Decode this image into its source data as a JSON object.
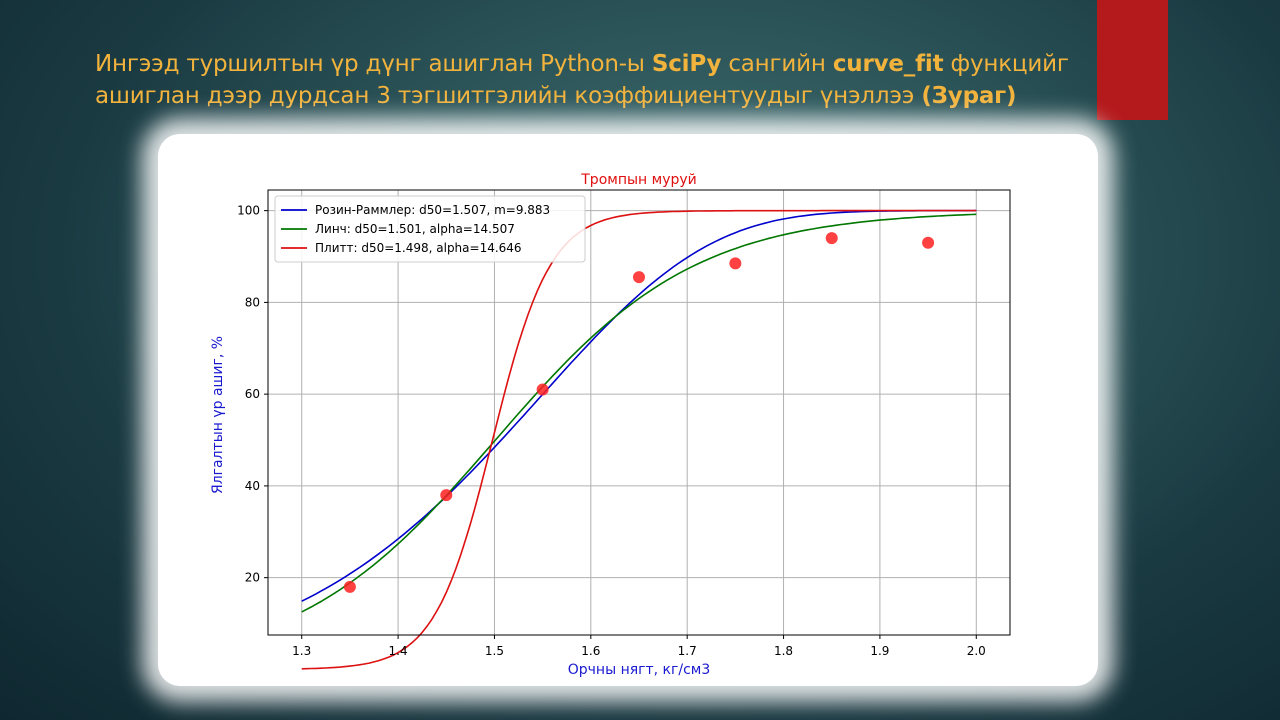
{
  "slide": {
    "title_parts": [
      {
        "text": "Ингээд туршилтын үр дүнг ашиглан Python-ы ",
        "bold": false
      },
      {
        "text": "SciPy",
        "bold": true
      },
      {
        "text": " сангийн ",
        "bold": false
      },
      {
        "text": "curve_fit",
        "bold": true
      },
      {
        "text": " функцийг ашиглан дээр дурдсан 3 тэгшитгэлийн коэффициентуудыг үнэллээ ",
        "bold": false
      },
      {
        "text": "(Зураг)",
        "bold": true
      }
    ],
    "accent_color": "#b4191c",
    "title_color": "#f2b33d"
  },
  "chart_data": {
    "type": "line",
    "title": "Тромпын муруй",
    "xlabel": "Орчны нягт, кг/см3",
    "ylabel": "Ялгалтын үр ашиг, %",
    "xlim": [
      1.265,
      2.035
    ],
    "ylim": [
      7.5,
      104.5
    ],
    "xticks": [
      1.3,
      1.4,
      1.5,
      1.6,
      1.7,
      1.8,
      1.9,
      2.0
    ],
    "yticks": [
      20,
      40,
      60,
      80,
      100
    ],
    "grid": true,
    "legend_position": "top-left",
    "series": [
      {
        "name": "Розин-Раммлер: d50=1.507, m=9.883",
        "color": "#0000cc",
        "model": "rosin-rammler",
        "d50": 1.507,
        "param": 9.883
      },
      {
        "name": "Линч: d50=1.501, alpha=14.507",
        "color": "#007700",
        "model": "lynch",
        "d50": 1.501,
        "param": 14.507
      },
      {
        "name": "Плитт: d50=1.498, alpha=14.646",
        "color": "#dd1111",
        "model": "plitt",
        "d50": 1.498,
        "param": 14.646
      }
    ],
    "points": {
      "x": [
        1.35,
        1.45,
        1.55,
        1.65,
        1.75,
        1.85,
        1.95
      ],
      "y": [
        18,
        38,
        61,
        85.5,
        88.5,
        94,
        93
      ],
      "color": "#ff2020"
    }
  }
}
